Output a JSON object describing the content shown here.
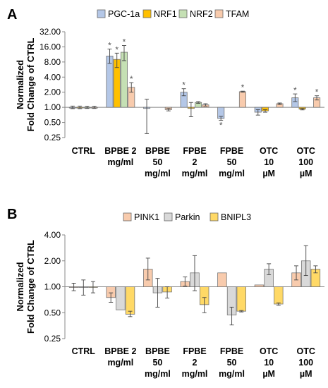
{
  "chart_data": [
    {
      "panel_label": "A",
      "type": "bar",
      "ylabel": "Normalized\nFold Change of CTRL",
      "yscale": "log2",
      "yticks": [
        "0.25",
        "0.50",
        "1.00",
        "2.00",
        "4.00",
        "8.00",
        "16.00",
        "32.00"
      ],
      "ylim": [
        0.25,
        32
      ],
      "baseline": 1,
      "categories": [
        "CTRL",
        "BPBE 2\nmg/ml",
        "BPBE\n50\nmg/ml",
        "FPBE\n2\nmg/ml",
        "FPBE\n50\nmg/ml",
        "OTC\n10\nµM",
        "OTC\n100\nµM"
      ],
      "series": [
        {
          "name": "PGC-1a",
          "color": "#b4c7e7",
          "values": [
            1.0,
            10.5,
            0.95,
            2.0,
            0.6,
            0.8,
            1.55
          ],
          "err_up": [
            1.06,
            14.5,
            1.45,
            2.35,
            0.66,
            0.9,
            1.85
          ],
          "err_down": [
            0.94,
            7.5,
            0.3,
            1.7,
            0.55,
            0.7,
            1.3
          ],
          "stars": [
            false,
            true,
            false,
            true,
            true,
            false,
            true
          ]
        },
        {
          "name": "NRF1",
          "color": "#ffc000",
          "values": [
            1.0,
            9.0,
            null,
            0.95,
            null,
            0.85,
            0.92
          ],
          "err_up": [
            1.06,
            12.0,
            null,
            1.25,
            null,
            0.9,
            0.95
          ],
          "err_down": [
            0.94,
            6.2,
            null,
            0.65,
            null,
            0.8,
            0.89
          ],
          "stars": [
            false,
            true,
            false,
            false,
            false,
            false,
            false
          ]
        },
        {
          "name": "NRF2",
          "color": "#c5e0b4",
          "values": [
            1.0,
            12.5,
            null,
            1.25,
            null,
            null,
            null
          ],
          "err_up": [
            1.05,
            17.0,
            null,
            1.3,
            null,
            null,
            null
          ],
          "err_down": [
            0.95,
            8.5,
            null,
            1.2,
            null,
            null,
            null
          ],
          "stars": [
            false,
            true,
            false,
            false,
            false,
            false,
            false
          ]
        },
        {
          "name": "TFAM",
          "color": "#f8cbad",
          "values": [
            1.0,
            2.5,
            0.9,
            1.12,
            2.05,
            1.18,
            1.55
          ],
          "err_up": [
            1.05,
            3.1,
            0.95,
            1.18,
            2.1,
            1.22,
            1.7
          ],
          "err_down": [
            0.95,
            2.0,
            0.85,
            1.06,
            2.0,
            1.14,
            1.4
          ],
          "stars": [
            false,
            true,
            false,
            false,
            true,
            false,
            true
          ]
        }
      ]
    },
    {
      "panel_label": "B",
      "type": "bar",
      "ylabel": "Normalized\nFold Change of CTRL",
      "yscale": "log2",
      "yticks": [
        "0.25",
        "0.50",
        "1.00",
        "2.00",
        "4.00"
      ],
      "ylim": [
        0.25,
        4
      ],
      "baseline": 1,
      "categories": [
        "CTRL",
        "BPBE 2\nmg/ml",
        "BPBE\n50\nmg/ml",
        "FPBE\n2\nmg/ml",
        "FPBE\n50\nmg/ml",
        "OTC\n10\nµM",
        "OTC\n100\nµM"
      ],
      "series": [
        {
          "name": "PINK1",
          "color": "#f8cbad",
          "values": [
            1.0,
            0.75,
            1.6,
            1.15,
            1.45,
            1.05,
            1.45
          ],
          "err_up": [
            1.1,
            0.85,
            2.15,
            1.3,
            1.45,
            1.05,
            1.75
          ],
          "err_down": [
            0.9,
            0.66,
            1.2,
            1.02,
            1.45,
            1.05,
            1.2
          ]
        },
        {
          "name": "Parkin",
          "color": "#d9d9d9",
          "values": [
            1.0,
            0.54,
            0.85,
            1.45,
            0.47,
            1.6,
            2.0
          ],
          "err_up": [
            1.2,
            0.54,
            1.25,
            2.3,
            0.58,
            1.85,
            3.0
          ],
          "err_down": [
            0.8,
            0.54,
            0.58,
            0.9,
            0.36,
            1.38,
            1.35
          ]
        },
        {
          "name": "BNIPL3",
          "color": "#ffd966",
          "values": [
            1.0,
            0.48,
            0.87,
            0.62,
            0.52,
            0.63,
            1.6
          ],
          "err_up": [
            1.15,
            0.52,
            1.0,
            0.75,
            0.53,
            0.65,
            1.75
          ],
          "err_down": [
            0.85,
            0.45,
            0.74,
            0.5,
            0.51,
            0.61,
            1.45
          ]
        }
      ]
    }
  ]
}
